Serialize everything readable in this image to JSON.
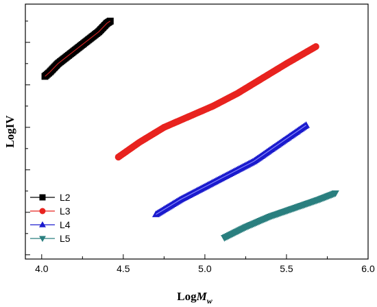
{
  "chart_data": {
    "type": "line",
    "xlabel_main": "LogM",
    "xlabel_sub": "w",
    "ylabel": "LogIV",
    "xlim": [
      3.9,
      6.0
    ],
    "x_ticks": [
      "4.0",
      "4.5",
      "5.0",
      "5.5",
      "6.0"
    ],
    "y_ticks_labeled": false,
    "grid": false,
    "legend_position": "bottom-left",
    "series": [
      {
        "name": "L2",
        "marker": "square",
        "color": "#000000",
        "line_color": "#cc2222",
        "x": [
          4.02,
          4.05,
          4.1,
          4.15,
          4.2,
          4.25,
          4.3,
          4.35,
          4.4,
          4.42
        ],
        "y": [
          0.74,
          0.76,
          0.8,
          0.83,
          0.86,
          0.89,
          0.92,
          0.95,
          0.99,
          1.0
        ]
      },
      {
        "name": "L3",
        "marker": "circle",
        "color": "#e8231f",
        "line_color": "#e8231f",
        "x": [
          4.47,
          4.6,
          4.75,
          4.9,
          5.05,
          5.2,
          5.35,
          5.5,
          5.68
        ],
        "y": [
          0.36,
          0.43,
          0.5,
          0.55,
          0.6,
          0.66,
          0.73,
          0.8,
          0.88
        ]
      },
      {
        "name": "L4",
        "marker": "triangle-up",
        "color": "#1a1acd",
        "line_color": "#8888ff",
        "x": [
          4.7,
          4.85,
          5.0,
          5.15,
          5.3,
          5.45,
          5.62
        ],
        "y": [
          0.09,
          0.16,
          0.22,
          0.28,
          0.34,
          0.42,
          0.51
        ]
      },
      {
        "name": "L5",
        "marker": "triangle-down",
        "color": "#2a7f7f",
        "line_color": "#2a7f7f",
        "x": [
          5.12,
          5.25,
          5.4,
          5.55,
          5.7,
          5.8
        ],
        "y": [
          -0.02,
          0.03,
          0.08,
          0.12,
          0.16,
          0.19
        ]
      }
    ],
    "ylim": [
      -0.12,
      1.08
    ]
  }
}
